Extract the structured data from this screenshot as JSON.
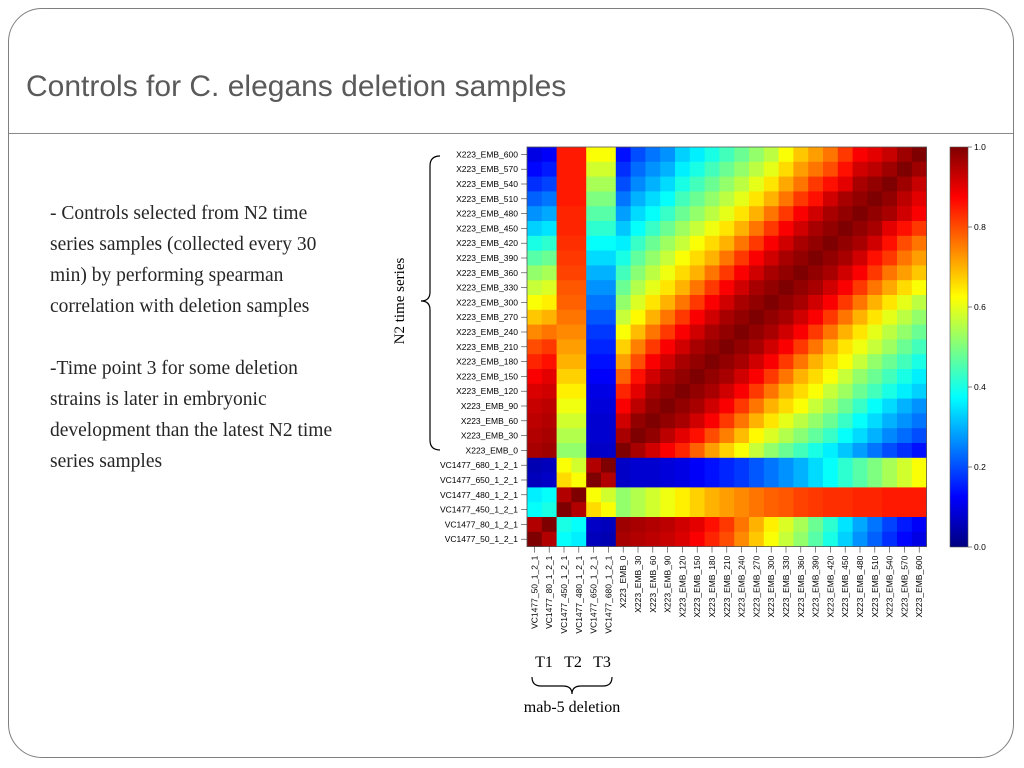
{
  "slide": {
    "title": "Controls for C. elegans deletion samples",
    "bullets": [
      "- Controls selected from N2 time series samples (collected every 30 min) by performing spearman correlation with deletion samples",
      "-Time point 3 for some deletion strains is later in embryonic development than the latest N2 time series samples"
    ]
  },
  "annotations": {
    "n2_label": "N2 time series",
    "t_labels": [
      "T1",
      "T2",
      "T3"
    ],
    "deletion_label": "mab-5 deletion"
  },
  "chart_data": {
    "type": "heatmap",
    "title": "",
    "row_labels": [
      "X223_EMB_600",
      "X223_EMB_570",
      "X223_EMB_540",
      "X223_EMB_510",
      "X223_EMB_480",
      "X223_EMB_450",
      "X223_EMB_420",
      "X223_EMB_390",
      "X223_EMB_360",
      "X223_EMB_330",
      "X223_EMB_300",
      "X223_EMB_270",
      "X223_EMB_240",
      "X223_EMB_210",
      "X223_EMB_180",
      "X223_EMB_150",
      "X223_EMB_120",
      "X223_EMB_90",
      "X223_EMB_60",
      "X223_EMB_30",
      "X223_EMB_0",
      "VC1477_680_1_2_1",
      "VC1477_650_1_2_1",
      "VC1477_480_1_2_1",
      "VC1477_450_1_2_1",
      "VC1477_80_1_2_1",
      "VC1477_50_1_2_1"
    ],
    "col_labels": [
      "VC1477_50_1_2_1",
      "VC1477_80_1_2_1",
      "VC1477_450_1_2_1",
      "VC1477_480_1_2_1",
      "VC1477_650_1_2_1",
      "VC1477_680_1_2_1",
      "X223_EMB_0",
      "X223_EMB_30",
      "X223_EMB_60",
      "X223_EMB_90",
      "X223_EMB_120",
      "X223_EMB_150",
      "X223_EMB_180",
      "X223_EMB_210",
      "X223_EMB_240",
      "X223_EMB_270",
      "X223_EMB_300",
      "X223_EMB_330",
      "X223_EMB_360",
      "X223_EMB_390",
      "X223_EMB_420",
      "X223_EMB_450",
      "X223_EMB_480",
      "X223_EMB_510",
      "X223_EMB_540",
      "X223_EMB_570",
      "X223_EMB_600"
    ],
    "values": [
      [
        0.1,
        0.12,
        0.85,
        0.85,
        0.62,
        0.62,
        0.14,
        0.2,
        0.24,
        0.27,
        0.33,
        0.36,
        0.4,
        0.44,
        0.48,
        0.52,
        0.56,
        0.62,
        0.68,
        0.72,
        0.76,
        0.82,
        0.88,
        0.9,
        0.93,
        0.97,
        1.0
      ],
      [
        0.13,
        0.15,
        0.85,
        0.85,
        0.58,
        0.58,
        0.17,
        0.23,
        0.27,
        0.3,
        0.36,
        0.4,
        0.44,
        0.48,
        0.52,
        0.56,
        0.6,
        0.66,
        0.72,
        0.76,
        0.8,
        0.86,
        0.92,
        0.94,
        0.97,
        1.0,
        0.97
      ],
      [
        0.17,
        0.19,
        0.85,
        0.85,
        0.54,
        0.54,
        0.2,
        0.26,
        0.3,
        0.34,
        0.4,
        0.44,
        0.48,
        0.52,
        0.56,
        0.6,
        0.65,
        0.71,
        0.76,
        0.82,
        0.86,
        0.9,
        0.96,
        0.98,
        1.0,
        0.97,
        0.93
      ],
      [
        0.22,
        0.24,
        0.85,
        0.85,
        0.5,
        0.5,
        0.24,
        0.3,
        0.34,
        0.38,
        0.44,
        0.48,
        0.52,
        0.56,
        0.6,
        0.65,
        0.7,
        0.76,
        0.82,
        0.86,
        0.92,
        0.96,
        0.98,
        1.0,
        0.98,
        0.94,
        0.9
      ],
      [
        0.27,
        0.29,
        0.84,
        0.84,
        0.46,
        0.46,
        0.28,
        0.34,
        0.38,
        0.43,
        0.48,
        0.52,
        0.56,
        0.6,
        0.65,
        0.7,
        0.76,
        0.82,
        0.88,
        0.92,
        0.96,
        0.98,
        1.0,
        0.98,
        0.96,
        0.92,
        0.88
      ],
      [
        0.33,
        0.35,
        0.84,
        0.84,
        0.42,
        0.42,
        0.32,
        0.38,
        0.43,
        0.48,
        0.53,
        0.57,
        0.61,
        0.65,
        0.7,
        0.76,
        0.82,
        0.88,
        0.92,
        0.96,
        0.98,
        1.0,
        0.98,
        0.96,
        0.9,
        0.86,
        0.82
      ],
      [
        0.4,
        0.42,
        0.83,
        0.83,
        0.38,
        0.38,
        0.36,
        0.43,
        0.48,
        0.53,
        0.57,
        0.62,
        0.66,
        0.7,
        0.76,
        0.82,
        0.88,
        0.92,
        0.96,
        0.98,
        1.0,
        0.98,
        0.96,
        0.92,
        0.86,
        0.8,
        0.76
      ],
      [
        0.46,
        0.48,
        0.82,
        0.82,
        0.34,
        0.34,
        0.4,
        0.47,
        0.52,
        0.57,
        0.62,
        0.66,
        0.7,
        0.76,
        0.82,
        0.88,
        0.92,
        0.96,
        0.98,
        1.0,
        0.98,
        0.96,
        0.92,
        0.86,
        0.82,
        0.76,
        0.72
      ],
      [
        0.52,
        0.54,
        0.81,
        0.81,
        0.3,
        0.3,
        0.44,
        0.51,
        0.56,
        0.61,
        0.66,
        0.7,
        0.76,
        0.82,
        0.88,
        0.92,
        0.96,
        0.98,
        1.0,
        0.98,
        0.96,
        0.92,
        0.88,
        0.82,
        0.76,
        0.72,
        0.68
      ],
      [
        0.57,
        0.59,
        0.79,
        0.79,
        0.27,
        0.27,
        0.48,
        0.55,
        0.6,
        0.65,
        0.7,
        0.76,
        0.82,
        0.88,
        0.92,
        0.96,
        0.98,
        1.0,
        0.98,
        0.96,
        0.92,
        0.88,
        0.82,
        0.76,
        0.71,
        0.66,
        0.62
      ],
      [
        0.62,
        0.64,
        0.78,
        0.78,
        0.24,
        0.24,
        0.52,
        0.59,
        0.65,
        0.7,
        0.76,
        0.82,
        0.88,
        0.92,
        0.96,
        0.98,
        1.0,
        0.98,
        0.96,
        0.92,
        0.88,
        0.82,
        0.76,
        0.7,
        0.65,
        0.6,
        0.56
      ],
      [
        0.68,
        0.7,
        0.76,
        0.76,
        0.21,
        0.21,
        0.57,
        0.63,
        0.7,
        0.76,
        0.82,
        0.88,
        0.92,
        0.96,
        0.98,
        1.0,
        0.98,
        0.96,
        0.92,
        0.88,
        0.82,
        0.76,
        0.7,
        0.65,
        0.6,
        0.56,
        0.52
      ],
      [
        0.74,
        0.76,
        0.74,
        0.74,
        0.18,
        0.18,
        0.62,
        0.69,
        0.76,
        0.82,
        0.88,
        0.92,
        0.96,
        0.98,
        1.0,
        0.98,
        0.96,
        0.92,
        0.88,
        0.82,
        0.76,
        0.7,
        0.65,
        0.6,
        0.56,
        0.52,
        0.48
      ],
      [
        0.8,
        0.82,
        0.72,
        0.72,
        0.16,
        0.16,
        0.67,
        0.75,
        0.82,
        0.88,
        0.92,
        0.96,
        0.98,
        1.0,
        0.98,
        0.96,
        0.92,
        0.88,
        0.82,
        0.76,
        0.7,
        0.65,
        0.61,
        0.57,
        0.53,
        0.48,
        0.44
      ],
      [
        0.84,
        0.86,
        0.7,
        0.7,
        0.14,
        0.14,
        0.72,
        0.8,
        0.88,
        0.92,
        0.96,
        0.98,
        1.0,
        0.98,
        0.96,
        0.92,
        0.88,
        0.82,
        0.76,
        0.7,
        0.66,
        0.62,
        0.57,
        0.52,
        0.48,
        0.44,
        0.4
      ],
      [
        0.88,
        0.9,
        0.67,
        0.67,
        0.12,
        0.12,
        0.78,
        0.86,
        0.92,
        0.96,
        0.98,
        1.0,
        0.98,
        0.96,
        0.92,
        0.88,
        0.82,
        0.76,
        0.7,
        0.66,
        0.62,
        0.57,
        0.52,
        0.48,
        0.44,
        0.4,
        0.36
      ],
      [
        0.91,
        0.92,
        0.64,
        0.64,
        0.1,
        0.1,
        0.84,
        0.9,
        0.96,
        0.98,
        1.0,
        0.98,
        0.96,
        0.92,
        0.88,
        0.82,
        0.76,
        0.7,
        0.66,
        0.62,
        0.57,
        0.53,
        0.48,
        0.44,
        0.4,
        0.36,
        0.33
      ],
      [
        0.93,
        0.94,
        0.61,
        0.61,
        0.09,
        0.09,
        0.88,
        0.94,
        0.98,
        1.0,
        0.98,
        0.96,
        0.92,
        0.88,
        0.82,
        0.76,
        0.7,
        0.66,
        0.62,
        0.57,
        0.53,
        0.48,
        0.43,
        0.38,
        0.34,
        0.3,
        0.27
      ],
      [
        0.94,
        0.95,
        0.58,
        0.58,
        0.08,
        0.08,
        0.92,
        0.98,
        1.0,
        0.98,
        0.96,
        0.92,
        0.88,
        0.82,
        0.76,
        0.7,
        0.65,
        0.6,
        0.56,
        0.52,
        0.48,
        0.43,
        0.38,
        0.34,
        0.3,
        0.27,
        0.24
      ],
      [
        0.95,
        0.96,
        0.55,
        0.55,
        0.08,
        0.08,
        0.96,
        1.0,
        0.98,
        0.94,
        0.9,
        0.86,
        0.8,
        0.75,
        0.69,
        0.63,
        0.59,
        0.55,
        0.51,
        0.47,
        0.43,
        0.38,
        0.34,
        0.3,
        0.26,
        0.23,
        0.2
      ],
      [
        0.96,
        0.97,
        0.52,
        0.52,
        0.07,
        0.07,
        1.0,
        0.96,
        0.92,
        0.88,
        0.84,
        0.78,
        0.72,
        0.67,
        0.62,
        0.57,
        0.52,
        0.48,
        0.44,
        0.4,
        0.36,
        0.32,
        0.28,
        0.24,
        0.2,
        0.17,
        0.14
      ],
      [
        0.05,
        0.06,
        0.62,
        0.58,
        0.95,
        1.0,
        0.07,
        0.08,
        0.08,
        0.09,
        0.1,
        0.12,
        0.14,
        0.16,
        0.18,
        0.21,
        0.24,
        0.27,
        0.3,
        0.34,
        0.38,
        0.42,
        0.46,
        0.5,
        0.54,
        0.58,
        0.62
      ],
      [
        0.06,
        0.07,
        0.66,
        0.62,
        1.0,
        0.95,
        0.07,
        0.08,
        0.08,
        0.09,
        0.1,
        0.12,
        0.14,
        0.16,
        0.18,
        0.21,
        0.24,
        0.27,
        0.3,
        0.34,
        0.38,
        0.42,
        0.46,
        0.5,
        0.54,
        0.58,
        0.62
      ],
      [
        0.36,
        0.38,
        0.95,
        1.0,
        0.62,
        0.58,
        0.52,
        0.55,
        0.58,
        0.61,
        0.64,
        0.67,
        0.7,
        0.72,
        0.74,
        0.76,
        0.78,
        0.79,
        0.81,
        0.82,
        0.83,
        0.83,
        0.84,
        0.84,
        0.85,
        0.85,
        0.85
      ],
      [
        0.38,
        0.4,
        1.0,
        0.95,
        0.66,
        0.62,
        0.52,
        0.55,
        0.58,
        0.61,
        0.64,
        0.67,
        0.7,
        0.72,
        0.74,
        0.76,
        0.78,
        0.79,
        0.81,
        0.82,
        0.83,
        0.83,
        0.84,
        0.84,
        0.85,
        0.85,
        0.85
      ],
      [
        0.95,
        1.0,
        0.4,
        0.38,
        0.07,
        0.06,
        0.97,
        0.96,
        0.95,
        0.94,
        0.92,
        0.9,
        0.86,
        0.82,
        0.76,
        0.7,
        0.64,
        0.59,
        0.54,
        0.48,
        0.42,
        0.35,
        0.29,
        0.24,
        0.19,
        0.15,
        0.12
      ],
      [
        1.0,
        0.95,
        0.38,
        0.36,
        0.06,
        0.05,
        0.96,
        0.95,
        0.94,
        0.93,
        0.91,
        0.88,
        0.84,
        0.8,
        0.74,
        0.68,
        0.62,
        0.57,
        0.52,
        0.46,
        0.4,
        0.33,
        0.27,
        0.22,
        0.17,
        0.13,
        0.1
      ]
    ],
    "color_scale": {
      "range": [
        0,
        1
      ],
      "ticks": [
        "1.0",
        "0.8",
        "0.6",
        "0.4",
        "0.2",
        "0.0"
      ],
      "colors": [
        "#00007f",
        "#0000ff",
        "#007fff",
        "#00ffff",
        "#7fff7f",
        "#ffff00",
        "#ff7f00",
        "#ff0000",
        "#7f0000"
      ]
    },
    "legend": "right"
  }
}
